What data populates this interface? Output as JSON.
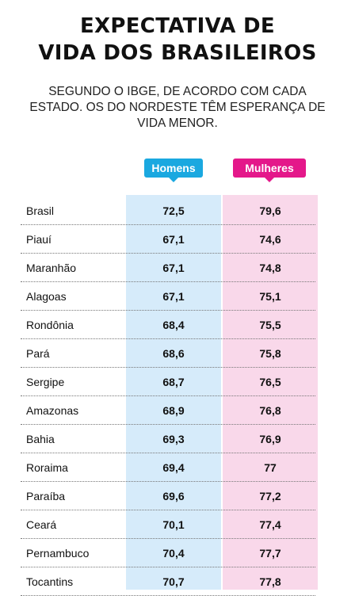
{
  "title_line1": "EXPECTATIVA DE",
  "title_line2": "VIDA DOS BRASILEIROS",
  "subtitle": "SEGUNDO O IBGE, DE ACORDO COM CADA ESTADO. OS DO NORDESTE TÊM ESPERANÇA DE VIDA MENOR.",
  "columns": {
    "men": "Homens",
    "women": "Mulheres"
  },
  "colors": {
    "men_tag": "#1aa8e0",
    "women_tag": "#e4188a",
    "men_col": "#d6ebfa",
    "women_col": "#f9d8ea"
  },
  "chart_data": {
    "type": "table",
    "categories": [
      "Brasil",
      "Piauí",
      "Maranhão",
      "Alagoas",
      "Rondônia",
      "Pará",
      "Sergipe",
      "Amazonas",
      "Bahia",
      "Roraima",
      "Paraíba",
      "Ceará",
      "Pernambuco",
      "Tocantins"
    ],
    "series": [
      {
        "name": "Homens",
        "values": [
          "72,5",
          "67,1",
          "67,1",
          "67,1",
          "68,4",
          "68,6",
          "68,7",
          "68,9",
          "69,3",
          "69,4",
          "69,6",
          "70,1",
          "70,4",
          "70,7"
        ]
      },
      {
        "name": "Mulheres",
        "values": [
          "79,6",
          "74,6",
          "74,8",
          "75,1",
          "75,5",
          "75,8",
          "76,5",
          "76,8",
          "76,9",
          "77",
          "77,2",
          "77,4",
          "77,7",
          "77,8"
        ]
      }
    ]
  }
}
